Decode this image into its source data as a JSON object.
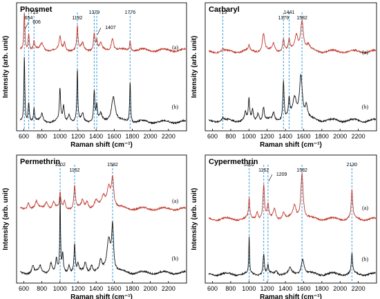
{
  "chart_data": [
    {
      "type": "line",
      "title": "Phosmet",
      "xlabel": "Raman shift (cm⁻¹)",
      "ylabel": "Intensity (arb. unit)",
      "xlim": [
        520,
        2400
      ],
      "xticks": [
        "600",
        "800",
        "1000",
        "1200",
        "1400",
        "1600",
        "1800",
        "2000",
        "2200"
      ],
      "grid": false,
      "marker_lines": [
        606,
        654,
        713,
        1192,
        1379,
        1407,
        1776
      ],
      "peak_labels": [
        {
          "text": "606",
          "x": 606,
          "arrow": true
        },
        {
          "text": "654",
          "x": 654,
          "arrow": false
        },
        {
          "text": "713",
          "x": 713,
          "arrow": false
        },
        {
          "text": "1192",
          "x": 1192,
          "arrow": false
        },
        {
          "text": "1379",
          "x": 1379,
          "arrow": false
        },
        {
          "text": "1407",
          "x": 1407,
          "arrow": true
        },
        {
          "text": "1776",
          "x": 1776,
          "arrow": false
        }
      ],
      "series": [
        {
          "name": "(a)",
          "color": "#c0392b",
          "offset": 0.63,
          "peaks": [
            [
              606,
              0.3,
              7
            ],
            [
              654,
              0.13,
              8
            ],
            [
              713,
              0.07,
              8
            ],
            [
              800,
              0.05,
              20
            ],
            [
              1000,
              0.1,
              12
            ],
            [
              1050,
              0.06,
              10
            ],
            [
              1192,
              0.18,
              8
            ],
            [
              1250,
              0.05,
              15
            ],
            [
              1379,
              0.13,
              10
            ],
            [
              1407,
              0.07,
              8
            ],
            [
              1450,
              0.05,
              12
            ],
            [
              1580,
              0.1,
              15
            ],
            [
              1776,
              0.08,
              8
            ]
          ]
        },
        {
          "name": "(b)",
          "color": "#111111",
          "offset": 0.07,
          "peaks": [
            [
              606,
              0.52,
              6
            ],
            [
              654,
              0.15,
              8
            ],
            [
              713,
              0.1,
              7
            ],
            [
              800,
              0.06,
              15
            ],
            [
              1000,
              0.25,
              8
            ],
            [
              1040,
              0.12,
              10
            ],
            [
              1100,
              0.06,
              15
            ],
            [
              1192,
              0.4,
              6
            ],
            [
              1250,
              0.06,
              12
            ],
            [
              1379,
              0.24,
              8
            ],
            [
              1407,
              0.12,
              8
            ],
            [
              1450,
              0.05,
              15
            ],
            [
              1590,
              0.2,
              25
            ],
            [
              1776,
              0.32,
              6
            ]
          ]
        }
      ]
    },
    {
      "type": "line",
      "title": "Carbaryl",
      "xlabel": "Raman shift (cm⁻¹)",
      "ylabel": "Intensity (arb. unit)",
      "xlim": [
        520,
        2400
      ],
      "xticks": [
        "600",
        "800",
        "1000",
        "1200",
        "1400",
        "1600",
        "1800",
        "2000",
        "2200"
      ],
      "grid": false,
      "marker_lines": [
        713,
        1379,
        1441,
        1582
      ],
      "peak_labels": [
        {
          "text": "713",
          "x": 713,
          "arrow": false
        },
        {
          "text": "1379",
          "x": 1379,
          "arrow": false
        },
        {
          "text": "1441",
          "x": 1441,
          "arrow": false
        },
        {
          "text": "1582",
          "x": 1582,
          "arrow": false
        }
      ],
      "series": [
        {
          "name": "(a)",
          "color": "#c0392b",
          "offset": 0.62,
          "peaks": [
            [
              713,
              0.02,
              8
            ],
            [
              1000,
              0.04,
              12
            ],
            [
              1160,
              0.14,
              15
            ],
            [
              1270,
              0.06,
              15
            ],
            [
              1379,
              0.1,
              10
            ],
            [
              1441,
              0.08,
              10
            ],
            [
              1520,
              0.12,
              20
            ],
            [
              1582,
              0.24,
              18
            ],
            [
              1650,
              0.04,
              20
            ]
          ]
        },
        {
          "name": "(b)",
          "color": "#111111",
          "offset": 0.08,
          "peaks": [
            [
              713,
              0.02,
              8
            ],
            [
              960,
              0.06,
              10
            ],
            [
              1000,
              0.16,
              8
            ],
            [
              1040,
              0.08,
              10
            ],
            [
              1100,
              0.06,
              12
            ],
            [
              1160,
              0.1,
              10
            ],
            [
              1270,
              0.06,
              12
            ],
            [
              1379,
              0.3,
              8
            ],
            [
              1441,
              0.14,
              10
            ],
            [
              1500,
              0.16,
              25
            ],
            [
              1570,
              0.34,
              20
            ],
            [
              1630,
              0.1,
              15
            ]
          ]
        }
      ]
    },
    {
      "type": "line",
      "title": "Permethrin",
      "xlabel": "Raman shift (cm⁻¹)",
      "ylabel": "Intensity (arb. unit)",
      "xlim": [
        520,
        2400
      ],
      "xticks": [
        "600",
        "800",
        "1000",
        "1200",
        "1400",
        "1600",
        "1800",
        "2000",
        "2200"
      ],
      "grid": false,
      "marker_lines": [
        1002,
        1162,
        1582
      ],
      "peak_labels": [
        {
          "text": "1002",
          "x": 1002,
          "arrow": false
        },
        {
          "text": "1162",
          "x": 1162,
          "arrow": false
        },
        {
          "text": "1582",
          "x": 1582,
          "arrow": false
        }
      ],
      "series": [
        {
          "name": "(a)",
          "color": "#c0392b",
          "offset": 0.58,
          "peaks": [
            [
              650,
              0.05,
              15
            ],
            [
              740,
              0.05,
              15
            ],
            [
              850,
              0.06,
              20
            ],
            [
              930,
              0.05,
              15
            ],
            [
              1002,
              0.12,
              8
            ],
            [
              1050,
              0.06,
              12
            ],
            [
              1162,
              0.18,
              10
            ],
            [
              1250,
              0.06,
              15
            ],
            [
              1300,
              0.05,
              15
            ],
            [
              1400,
              0.06,
              25
            ],
            [
              1480,
              0.08,
              20
            ],
            [
              1540,
              0.16,
              25
            ],
            [
              1582,
              0.22,
              15
            ]
          ]
        },
        {
          "name": "(b)",
          "color": "#111111",
          "offset": 0.08,
          "peaks": [
            [
              700,
              0.06,
              12
            ],
            [
              780,
              0.05,
              15
            ],
            [
              900,
              0.08,
              15
            ],
            [
              960,
              0.1,
              10
            ],
            [
              1002,
              0.58,
              5
            ],
            [
              1030,
              0.14,
              8
            ],
            [
              1100,
              0.06,
              12
            ],
            [
              1162,
              0.22,
              8
            ],
            [
              1200,
              0.06,
              10
            ],
            [
              1280,
              0.08,
              15
            ],
            [
              1350,
              0.06,
              15
            ],
            [
              1450,
              0.08,
              15
            ],
            [
              1540,
              0.26,
              25
            ],
            [
              1582,
              0.34,
              12
            ]
          ]
        }
      ]
    },
    {
      "type": "line",
      "title": "Cypermethrin",
      "xlabel": "Raman shift (cm⁻¹)",
      "ylabel": "Intensity (arb. unit)",
      "xlim": [
        520,
        2400
      ],
      "xticks": [
        "600",
        "800",
        "1000",
        "1200",
        "1400",
        "1600",
        "1800",
        "2000",
        "2200"
      ],
      "grid": false,
      "marker_lines": [
        1002,
        1162,
        1209,
        1582,
        2130
      ],
      "peak_labels": [
        {
          "text": "1002",
          "x": 1002,
          "arrow": false
        },
        {
          "text": "1162",
          "x": 1162,
          "arrow": false
        },
        {
          "text": "1209",
          "x": 1209,
          "arrow": true
        },
        {
          "text": "1582",
          "x": 1582,
          "arrow": false
        },
        {
          "text": "2130",
          "x": 2130,
          "arrow": false
        }
      ],
      "series": [
        {
          "name": "(a)",
          "color": "#c0392b",
          "offset": 0.5,
          "peaks": [
            [
              1002,
              0.16,
              8
            ],
            [
              1090,
              0.06,
              12
            ],
            [
              1162,
              0.26,
              10
            ],
            [
              1209,
              0.1,
              10
            ],
            [
              1280,
              0.08,
              15
            ],
            [
              1380,
              0.05,
              15
            ],
            [
              1500,
              0.1,
              20
            ],
            [
              1582,
              0.36,
              15
            ],
            [
              2130,
              0.22,
              10
            ]
          ]
        },
        {
          "name": "(b)",
          "color": "#111111",
          "offset": 0.07,
          "peaks": [
            [
              1002,
              0.3,
              5
            ],
            [
              1162,
              0.16,
              8
            ],
            [
              1209,
              0.06,
              8
            ],
            [
              1300,
              0.03,
              15
            ],
            [
              1450,
              0.04,
              15
            ],
            [
              1590,
              0.12,
              20
            ],
            [
              2130,
              0.16,
              8
            ]
          ]
        }
      ]
    }
  ]
}
